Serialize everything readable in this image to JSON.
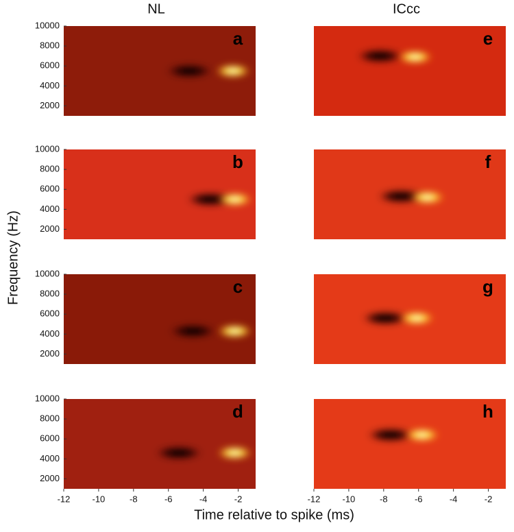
{
  "chart_data": {
    "type": "heatmap",
    "columns": [
      "NL",
      "ICcc"
    ],
    "xlabel": "Time relative to spike (ms)",
    "ylabel": "Frequency (Hz)",
    "xlim": [
      -12,
      -1
    ],
    "ylim": [
      1000,
      10000
    ],
    "xticks": [
      -12,
      -10,
      -8,
      -6,
      -4,
      -2
    ],
    "yticks": [
      2000,
      4000,
      6000,
      8000,
      10000
    ],
    "panels": [
      {
        "label": "a",
        "color": "#8e1c0a",
        "hot": {
          "x": -2.3,
          "y": 5500
        },
        "dark": {
          "x": -4.8,
          "y": 5500
        }
      },
      {
        "label": "b",
        "color": "#d8301a",
        "hot": {
          "x": -2.2,
          "y": 5000
        },
        "dark": {
          "x": -3.6,
          "y": 5000
        }
      },
      {
        "label": "c",
        "color": "#8a1a08",
        "hot": {
          "x": -2.2,
          "y": 4300
        },
        "dark": {
          "x": -4.6,
          "y": 4300
        }
      },
      {
        "label": "d",
        "color": "#a02010",
        "hot": {
          "x": -2.2,
          "y": 4600
        },
        "dark": {
          "x": -5.4,
          "y": 4600
        }
      },
      {
        "label": "e",
        "color": "#d42a10",
        "hot": {
          "x": -6.2,
          "y": 6900
        },
        "dark": {
          "x": -8.2,
          "y": 7000
        }
      },
      {
        "label": "f",
        "color": "#e03818",
        "hot": {
          "x": -5.5,
          "y": 5200
        },
        "dark": {
          "x": -7.0,
          "y": 5300
        }
      },
      {
        "label": "g",
        "color": "#e43a18",
        "hot": {
          "x": -6.1,
          "y": 5600
        },
        "dark": {
          "x": -7.9,
          "y": 5600
        }
      },
      {
        "label": "h",
        "color": "#e43a18",
        "hot": {
          "x": -5.8,
          "y": 6400
        },
        "dark": {
          "x": -7.6,
          "y": 6400
        }
      }
    ]
  }
}
